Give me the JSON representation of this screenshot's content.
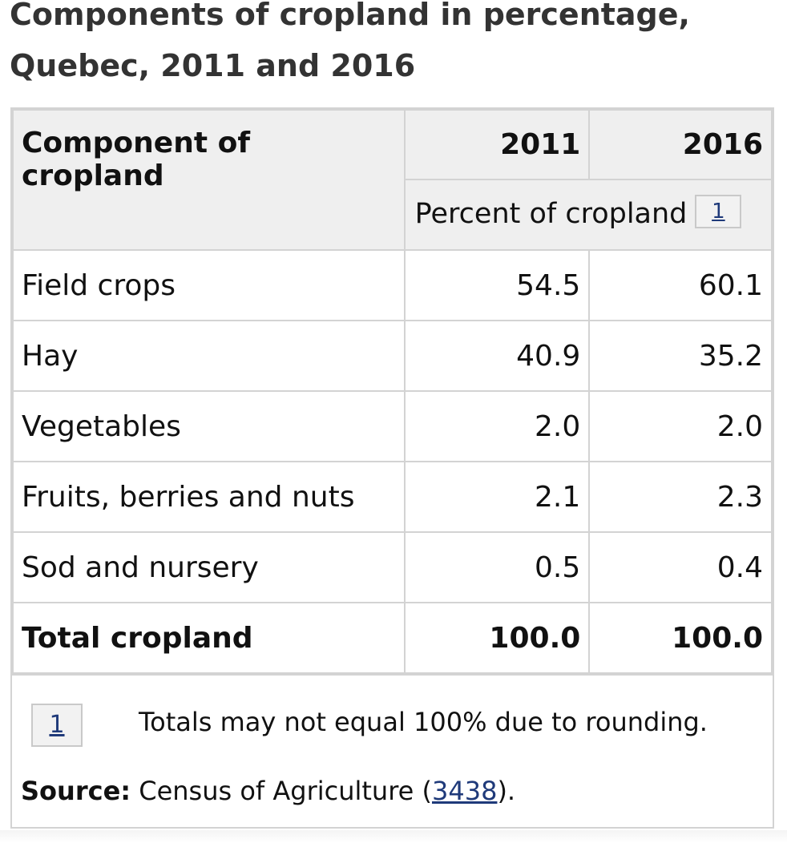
{
  "title": "Components of cropland in percentage, Quebec, 2011 and 2016",
  "table": {
    "header_component": "Component of cropland",
    "header_year_1": "2011",
    "header_year_2": "2016",
    "unit_label": "Percent of cropland",
    "unit_footnote_ref": "1",
    "rows": [
      {
        "component": "Field crops",
        "v2011": "54.5",
        "v2016": "60.1"
      },
      {
        "component": "Hay",
        "v2011": "40.9",
        "v2016": "35.2"
      },
      {
        "component": "Vegetables",
        "v2011": "2.0",
        "v2016": "2.0"
      },
      {
        "component": "Fruits, berries and nuts",
        "v2011": "2.1",
        "v2016": "2.3"
      },
      {
        "component": "Sod and nursery",
        "v2011": "0.5",
        "v2016": "0.4"
      },
      {
        "component": "Total cropland",
        "v2011": "100.0",
        "v2016": "100.0"
      }
    ]
  },
  "footnotes": {
    "ref": "1",
    "text": "Totals may not equal 100% due to rounding."
  },
  "source": {
    "label": "Source:",
    "text_before": "Census of Agriculture (",
    "link": "3438",
    "text_after": ")."
  },
  "colors": {
    "border": "#d3d3d3",
    "header_bg": "#efefef",
    "link": "#1f3a7a"
  }
}
